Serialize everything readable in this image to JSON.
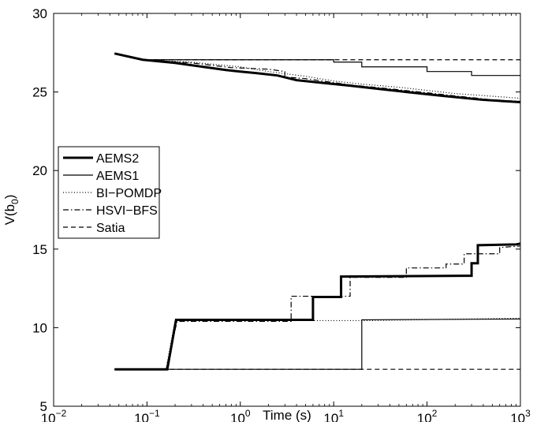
{
  "chart_data": {
    "type": "line",
    "xlabel": "Time (s)",
    "ylabel": "V(b0)",
    "x_scale": "log",
    "xlim": [
      0.01,
      1000
    ],
    "ylim": [
      5,
      30
    ],
    "grid": false,
    "legend_position": "left-center",
    "x_ticks": [
      {
        "value": 0.01,
        "base": "10",
        "exp": "−2"
      },
      {
        "value": 0.1,
        "base": "10",
        "exp": "−1"
      },
      {
        "value": 1,
        "base": "10",
        "exp": "0"
      },
      {
        "value": 10,
        "base": "10",
        "exp": "1"
      },
      {
        "value": 100,
        "base": "10",
        "exp": "2"
      },
      {
        "value": 1000,
        "base": "10",
        "exp": "3"
      }
    ],
    "y_ticks": [
      5,
      10,
      15,
      20,
      25,
      30
    ],
    "series": [
      {
        "name": "AEMS2",
        "stroke_width": 3,
        "dash": "",
        "color": "#000000",
        "upper": [
          [
            0.045,
            27.45
          ],
          [
            0.09,
            27.05
          ],
          [
            0.2,
            26.85
          ],
          [
            0.4,
            26.6
          ],
          [
            0.7,
            26.4
          ],
          [
            1,
            26.3
          ],
          [
            1.5,
            26.2
          ],
          [
            2.5,
            26.05
          ],
          [
            4,
            25.75
          ],
          [
            7,
            25.6
          ],
          [
            15,
            25.4
          ],
          [
            30,
            25.2
          ],
          [
            60,
            25
          ],
          [
            150,
            24.75
          ],
          [
            400,
            24.5
          ],
          [
            1000,
            24.35
          ]
        ],
        "lower": [
          [
            0.045,
            7.35
          ],
          [
            0.165,
            7.35
          ],
          [
            0.205,
            10.5
          ],
          [
            6,
            10.5
          ],
          [
            6,
            11.95
          ],
          [
            12,
            11.95
          ],
          [
            12,
            13.25
          ],
          [
            250,
            13.3
          ],
          [
            300,
            13.3
          ],
          [
            300,
            14.1
          ],
          [
            350,
            14.1
          ],
          [
            350,
            15.25
          ],
          [
            900,
            15.3
          ],
          [
            1000,
            15.35
          ]
        ]
      },
      {
        "name": "AEMS1",
        "stroke_width": 1.2,
        "dash": "",
        "color": "#000000",
        "upper": [
          [
            0.045,
            27.45
          ],
          [
            0.09,
            27.05
          ],
          [
            10,
            27.05
          ],
          [
            10,
            26.9
          ],
          [
            20,
            26.9
          ],
          [
            20,
            26.6
          ],
          [
            100,
            26.6
          ],
          [
            100,
            26.3
          ],
          [
            300,
            26.3
          ],
          [
            300,
            26.05
          ],
          [
            1000,
            26.05
          ]
        ],
        "lower": [
          [
            0.045,
            7.35
          ],
          [
            20,
            7.35
          ],
          [
            20,
            10.5
          ],
          [
            1000,
            10.55
          ]
        ]
      },
      {
        "name": "BI−POMDP",
        "stroke_width": 1.2,
        "dash": "1,2.5",
        "color": "#000000",
        "upper": [
          [
            0.045,
            27.45
          ],
          [
            0.09,
            27.05
          ],
          [
            0.3,
            26.9
          ],
          [
            1,
            26.6
          ],
          [
            2,
            26.3
          ],
          [
            5,
            26
          ],
          [
            10,
            25.7
          ],
          [
            20,
            25.5
          ],
          [
            50,
            25.3
          ],
          [
            100,
            25.1
          ],
          [
            200,
            24.9
          ],
          [
            1000,
            24.6
          ]
        ],
        "lower": [
          [
            0.045,
            7.35
          ],
          [
            0.16,
            7.35
          ],
          [
            0.2,
            10.45
          ],
          [
            20,
            10.45
          ],
          [
            1000,
            10.6
          ]
        ]
      },
      {
        "name": "HSVI−BFS",
        "stroke_width": 1.2,
        "dash": "7,3,1.5,3",
        "color": "#000000",
        "upper": [
          [
            0.045,
            27.45
          ],
          [
            0.09,
            27.05
          ],
          [
            0.3,
            26.85
          ],
          [
            0.8,
            26.55
          ],
          [
            2,
            26.45
          ],
          [
            3,
            26.3
          ],
          [
            3,
            25.95
          ],
          [
            5,
            25.85
          ],
          [
            15,
            25.45
          ],
          [
            40,
            25.2
          ],
          [
            100,
            24.95
          ],
          [
            200,
            24.75
          ],
          [
            500,
            24.5
          ],
          [
            1000,
            24.4
          ]
        ],
        "lower": [
          [
            0.045,
            7.35
          ],
          [
            0.16,
            7.35
          ],
          [
            0.21,
            10.4
          ],
          [
            3.5,
            10.4
          ],
          [
            3.5,
            12
          ],
          [
            15,
            12
          ],
          [
            15,
            13.2
          ],
          [
            60,
            13.2
          ],
          [
            60,
            13.8
          ],
          [
            160,
            13.8
          ],
          [
            160,
            14.05
          ],
          [
            250,
            14.05
          ],
          [
            250,
            14.7
          ],
          [
            600,
            14.7
          ],
          [
            600,
            15.1
          ],
          [
            1000,
            15.2
          ]
        ]
      },
      {
        "name": "Satia",
        "stroke_width": 1.2,
        "dash": "6,4",
        "color": "#000000",
        "upper": [
          [
            0.045,
            27.45
          ],
          [
            0.09,
            27.05
          ],
          [
            0.6,
            27.05
          ],
          [
            1000,
            27.05
          ]
        ],
        "lower": [
          [
            0.045,
            7.35
          ],
          [
            1000,
            7.35
          ]
        ]
      }
    ]
  }
}
